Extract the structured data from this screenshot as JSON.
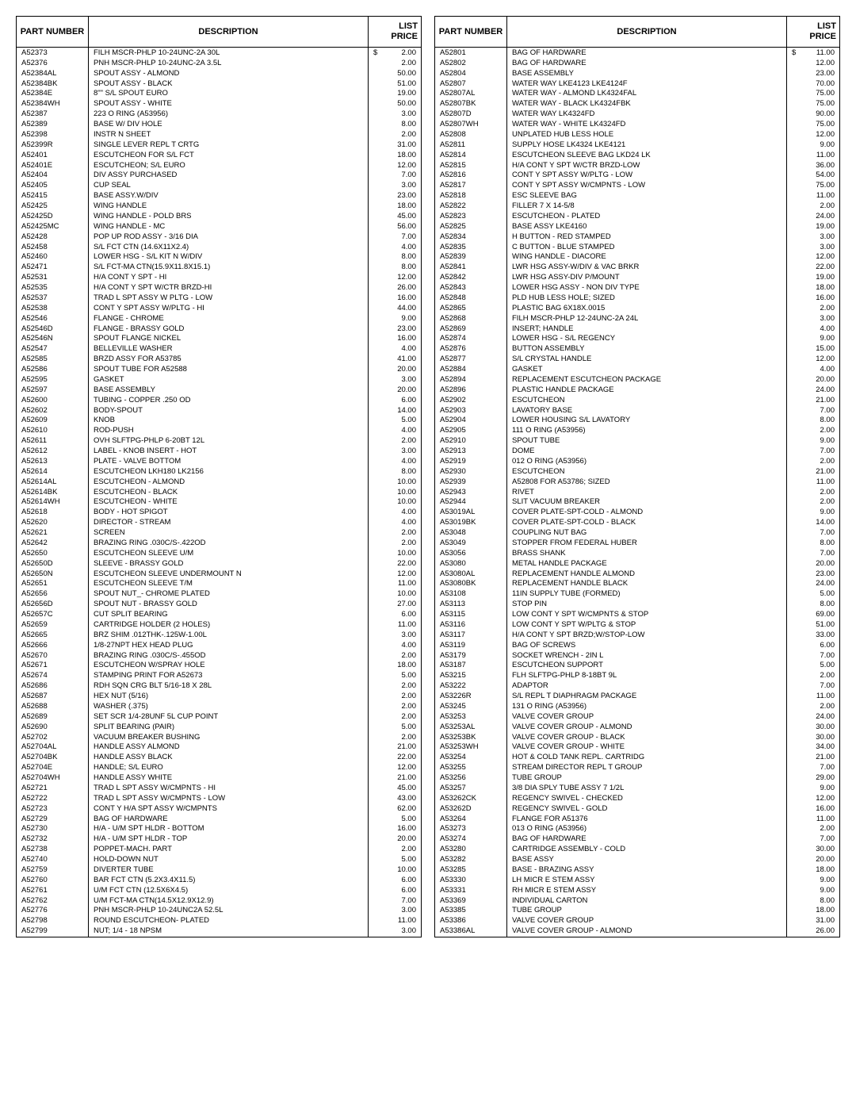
{
  "headers": {
    "part": "PART NUMBER",
    "desc": "DESCRIPTION",
    "price": "LIST PRICE"
  },
  "currency": "$",
  "left": [
    {
      "p": "A52373",
      "d": "FILH MSCR-PHLP 10-24UNC-2A 30L",
      "pr": "2.00",
      "first": true
    },
    {
      "p": "A52376",
      "d": "PNH MSCR-PHLP 10-24UNC-2A 3.5L",
      "pr": "2.00"
    },
    {
      "p": "A52384AL",
      "d": "SPOUT ASSY - ALMOND",
      "pr": "50.00"
    },
    {
      "p": "A52384BK",
      "d": "SPOUT ASSY - BLACK",
      "pr": "51.00"
    },
    {
      "p": "A52384E",
      "d": "8\"\" S/L SPOUT EURO",
      "pr": "19.00"
    },
    {
      "p": "A52384WH",
      "d": "SPOUT ASSY - WHITE",
      "pr": "50.00"
    },
    {
      "p": "A52387",
      "d": "223  O  RING (A53956)",
      "pr": "3.00"
    },
    {
      "p": "A52389",
      "d": "BASE W/ DIV HOLE",
      "pr": "8.00"
    },
    {
      "p": "A52398",
      "d": "INSTR N SHEET",
      "pr": "2.00"
    },
    {
      "p": "A52399R",
      "d": "SINGLE LEVER REPL T CRTG",
      "pr": "31.00"
    },
    {
      "p": "A52401",
      "d": "ESCUTCHEON FOR S/L FCT",
      "pr": "18.00"
    },
    {
      "p": "A52401E",
      "d": "ESCUTCHEON; S/L EURO",
      "pr": "12.00"
    },
    {
      "p": "A52404",
      "d": "DIV ASSY PURCHASED",
      "pr": "7.00"
    },
    {
      "p": "A52405",
      "d": "CUP SEAL",
      "pr": "3.00"
    },
    {
      "p": "A52415",
      "d": "BASE ASSY.W/DIV",
      "pr": "23.00"
    },
    {
      "p": "A52425",
      "d": "WING HANDLE",
      "pr": "18.00"
    },
    {
      "p": "A52425D",
      "d": "WING HANDLE - POLD BRS",
      "pr": "45.00"
    },
    {
      "p": "A52425MC",
      "d": "WING HANDLE - MC",
      "pr": "56.00"
    },
    {
      "p": "A52428",
      "d": "POP UP ROD ASSY - 3/16 DIA",
      "pr": "7.00"
    },
    {
      "p": "A52458",
      "d": "S/L FCT CTN (14.6X11X2.4)",
      "pr": "4.00"
    },
    {
      "p": "A52460",
      "d": "LOWER HSG - S/L KIT N W/DIV",
      "pr": "8.00"
    },
    {
      "p": "A52471",
      "d": "S/L FCT-MA CTN(15.9X11.8X15.1)",
      "pr": "8.00"
    },
    {
      "p": "A52531",
      "d": "H/A CONT Y SPT - HI",
      "pr": "12.00"
    },
    {
      "p": "A52535",
      "d": "H/A CONT Y SPT W/CTR BRZD-HI",
      "pr": "26.00"
    },
    {
      "p": "A52537",
      "d": "TRAD L SPT ASSY W PLTG - LOW",
      "pr": "16.00"
    },
    {
      "p": "A52538",
      "d": "CONT Y SPT ASSY W/PLTG - HI",
      "pr": "44.00"
    },
    {
      "p": "A52546",
      "d": "FLANGE - CHROME",
      "pr": "9.00"
    },
    {
      "p": "A52546D",
      "d": "FLANGE - BRASSY GOLD",
      "pr": "23.00"
    },
    {
      "p": "A52546N",
      "d": "SPOUT FLANGE NICKEL",
      "pr": "16.00"
    },
    {
      "p": "A52547",
      "d": "BELLEVILLE WASHER",
      "pr": "4.00"
    },
    {
      "p": "A52585",
      "d": "BRZD ASSY FOR A53785",
      "pr": "41.00"
    },
    {
      "p": "A52586",
      "d": "SPOUT TUBE FOR A52588",
      "pr": "20.00"
    },
    {
      "p": "A52595",
      "d": "GASKET",
      "pr": "3.00"
    },
    {
      "p": "A52597",
      "d": "BASE ASSEMBLY",
      "pr": "20.00"
    },
    {
      "p": "A52600",
      "d": "TUBING - COPPER .250 OD",
      "pr": "6.00"
    },
    {
      "p": "A52602",
      "d": "BODY-SPOUT",
      "pr": "14.00"
    },
    {
      "p": "A52609",
      "d": "KNOB",
      "pr": "5.00"
    },
    {
      "p": "A52610",
      "d": "ROD-PUSH",
      "pr": "4.00"
    },
    {
      "p": "A52611",
      "d": "OVH SLFTPG-PHLP 6-20BT 12L",
      "pr": "2.00"
    },
    {
      "p": "A52612",
      "d": "LABEL - KNOB INSERT - HOT",
      "pr": "3.00"
    },
    {
      "p": "A52613",
      "d": "PLATE - VALVE BOTTOM",
      "pr": "4.00"
    },
    {
      "p": "A52614",
      "d": "ESCUTCHEON LKH180 LK2156",
      "pr": "8.00"
    },
    {
      "p": "A52614AL",
      "d": "ESCUTCHEON - ALMOND",
      "pr": "10.00"
    },
    {
      "p": "A52614BK",
      "d": "ESCUTCHEON - BLACK",
      "pr": "10.00"
    },
    {
      "p": "A52614WH",
      "d": "ESCUTCHEON - WHITE",
      "pr": "10.00"
    },
    {
      "p": "A52618",
      "d": "BODY - HOT SPIGOT",
      "pr": "4.00"
    },
    {
      "p": "A52620",
      "d": "DIRECTOR - STREAM",
      "pr": "4.00"
    },
    {
      "p": "A52621",
      "d": "SCREEN",
      "pr": "2.00"
    },
    {
      "p": "A52642",
      "d": "BRAZING RING .030C/S-.422OD",
      "pr": "2.00"
    },
    {
      "p": "A52650",
      "d": "ESCUTCHEON SLEEVE U/M",
      "pr": "10.00"
    },
    {
      "p": "A52650D",
      "d": "SLEEVE - BRASSY GOLD",
      "pr": "22.00"
    },
    {
      "p": "A52650N",
      "d": "ESCUTCHEON SLEEVE UNDERMOUNT N",
      "pr": "12.00"
    },
    {
      "p": "A52651",
      "d": "ESCUTCHEON SLEEVE T/M",
      "pr": "11.00"
    },
    {
      "p": "A52656",
      "d": "SPOUT NUT_- CHROME PLATED",
      "pr": "10.00"
    },
    {
      "p": "A52656D",
      "d": "SPOUT NUT - BRASSY GOLD",
      "pr": "27.00"
    },
    {
      "p": "A52657C",
      "d": "CUT SPLIT BEARING",
      "pr": "6.00"
    },
    {
      "p": "A52659",
      "d": "CARTRIDGE HOLDER (2 HOLES)",
      "pr": "11.00"
    },
    {
      "p": "A52665",
      "d": "BRZ SHIM .012THK-.125W-1.00L",
      "pr": "3.00"
    },
    {
      "p": "A52666",
      "d": "1/8-27NPT HEX HEAD PLUG",
      "pr": "4.00"
    },
    {
      "p": "A52670",
      "d": "BRAZING RING .030C/S-.455OD",
      "pr": "2.00"
    },
    {
      "p": "A52671",
      "d": "ESCUTCHEON W/SPRAY HOLE",
      "pr": "18.00"
    },
    {
      "p": "A52674",
      "d": "STAMPING PRINT FOR A52673",
      "pr": "5.00"
    },
    {
      "p": "A52686",
      "d": "RDH SQN CRG BLT 5/16-18 X 28L",
      "pr": "2.00"
    },
    {
      "p": "A52687",
      "d": "HEX NUT (5/16)",
      "pr": "2.00"
    },
    {
      "p": "A52688",
      "d": "WASHER (.375)",
      "pr": "2.00"
    },
    {
      "p": "A52689",
      "d": "SET SCR 1/4-28UNF 5L CUP POINT",
      "pr": "2.00"
    },
    {
      "p": "A52690",
      "d": "SPLIT  BEARING (PAIR)",
      "pr": "5.00"
    },
    {
      "p": "A52702",
      "d": "VACUUM BREAKER BUSHING",
      "pr": "2.00"
    },
    {
      "p": "A52704AL",
      "d": "HANDLE ASSY ALMOND",
      "pr": "21.00"
    },
    {
      "p": "A52704BK",
      "d": "HANDLE ASSY BLACK",
      "pr": "22.00"
    },
    {
      "p": "A52704E",
      "d": "HANDLE; S/L EURO",
      "pr": "12.00"
    },
    {
      "p": "A52704WH",
      "d": "HANDLE ASSY WHITE",
      "pr": "21.00"
    },
    {
      "p": "A52721",
      "d": "TRAD L SPT ASSY W/CMPNTS - HI",
      "pr": "45.00"
    },
    {
      "p": "A52722",
      "d": "TRAD L SPT ASSY W/CMPNTS - LOW",
      "pr": "43.00"
    },
    {
      "p": "A52723",
      "d": "CONT Y H/A SPT ASSY W/CMPNTS",
      "pr": "62.00"
    },
    {
      "p": "A52729",
      "d": "BAG OF HARDWARE",
      "pr": "5.00"
    },
    {
      "p": "A52730",
      "d": "H/A - U/M SPT HLDR - BOTTOM",
      "pr": "16.00"
    },
    {
      "p": "A52732",
      "d": "H/A - U/M SPT HLDR - TOP",
      "pr": "20.00"
    },
    {
      "p": "A52738",
      "d": "POPPET-MACH. PART",
      "pr": "2.00"
    },
    {
      "p": "A52740",
      "d": "HOLD-DOWN NUT",
      "pr": "5.00"
    },
    {
      "p": "A52759",
      "d": "DIVERTER TUBE",
      "pr": "10.00"
    },
    {
      "p": "A52760",
      "d": "BAR FCT CTN (5.2X3.4X11.5)",
      "pr": "6.00"
    },
    {
      "p": "A52761",
      "d": "U/M FCT CTN (12.5X6X4.5)",
      "pr": "6.00"
    },
    {
      "p": "A52762",
      "d": "U/M FCT-MA CTN(14.5X12.9X12.9)",
      "pr": "7.00"
    },
    {
      "p": "A52776",
      "d": "PNH MSCR-PHLP 10-24UNC2A 52.5L",
      "pr": "3.00"
    },
    {
      "p": "A52798",
      "d": "ROUND ESCUTCHEON- PLATED",
      "pr": "11.00"
    },
    {
      "p": "A52799",
      "d": "NUT; 1/4 - 18 NPSM",
      "pr": "3.00"
    }
  ],
  "right": [
    {
      "p": "A52801",
      "d": "BAG OF HARDWARE",
      "pr": "11.00",
      "first": true
    },
    {
      "p": "A52802",
      "d": "BAG OF HARDWARE",
      "pr": "12.00"
    },
    {
      "p": "A52804",
      "d": "BASE ASSEMBLY",
      "pr": "23.00"
    },
    {
      "p": "A52807",
      "d": "WATER WAY LKE4123 LKE4124F",
      "pr": "70.00"
    },
    {
      "p": "A52807AL",
      "d": "WATER WAY - ALMOND LK4324FAL",
      "pr": "75.00"
    },
    {
      "p": "A52807BK",
      "d": "WATER WAY - BLACK LK4324FBK",
      "pr": "75.00"
    },
    {
      "p": "A52807D",
      "d": "WATER WAY LK4324FD",
      "pr": "90.00"
    },
    {
      "p": "A52807WH",
      "d": "WATER WAY - WHITE LK4324FD",
      "pr": "75.00"
    },
    {
      "p": "A52808",
      "d": "UNPLATED HUB LESS HOLE",
      "pr": "12.00"
    },
    {
      "p": "A52811",
      "d": "SUPPLY HOSE LK4324 LKE4121",
      "pr": "9.00"
    },
    {
      "p": "A52814",
      "d": "ESCUTCHEON SLEEVE BAG LKD24 LK",
      "pr": "11.00"
    },
    {
      "p": "A52815",
      "d": "H/A CONT Y SPT W/CTR BRZD-LOW",
      "pr": "36.00"
    },
    {
      "p": "A52816",
      "d": "CONT Y SPT ASSY W/PLTG - LOW",
      "pr": "54.00"
    },
    {
      "p": "A52817",
      "d": "CONT Y SPT ASSY W/CMPNTS - LOW",
      "pr": "75.00"
    },
    {
      "p": "A52818",
      "d": "ESC SLEEVE BAG",
      "pr": "11.00"
    },
    {
      "p": "A52822",
      "d": "FILLER   7 X 14-5/8",
      "pr": "2.00"
    },
    {
      "p": "A52823",
      "d": "ESCUTCHEON - PLATED",
      "pr": "24.00"
    },
    {
      "p": "A52825",
      "d": "BASE ASSY LKE4160",
      "pr": "19.00"
    },
    {
      "p": "A52834",
      "d": "H  BUTTON - RED STAMPED",
      "pr": "3.00"
    },
    {
      "p": "A52835",
      "d": "C  BUTTON - BLUE STAMPED",
      "pr": "3.00"
    },
    {
      "p": "A52839",
      "d": "WING HANDLE - DIACORE",
      "pr": "12.00"
    },
    {
      "p": "A52841",
      "d": "LWR HSG ASSY-W/DIV & VAC BRKR",
      "pr": "22.00"
    },
    {
      "p": "A52842",
      "d": "LWR HSG ASSY-DIV P/MOUNT",
      "pr": "19.00"
    },
    {
      "p": "A52843",
      "d": "LOWER HSG ASSY - NON DIV TYPE",
      "pr": "18.00"
    },
    {
      "p": "A52848",
      "d": "PLD HUB LESS HOLE; SIZED",
      "pr": "16.00"
    },
    {
      "p": "A52865",
      "d": "PLASTIC BAG 6X18X.0015",
      "pr": "2.00"
    },
    {
      "p": "A52868",
      "d": "FILH MSCR-PHLP 12-24UNC-2A 24L",
      "pr": "3.00"
    },
    {
      "p": "A52869",
      "d": "INSERT; HANDLE",
      "pr": "4.00"
    },
    {
      "p": "A52874",
      "d": "LOWER HSG - S/L REGENCY",
      "pr": "9.00"
    },
    {
      "p": "A52876",
      "d": "BUTTON ASSEMBLY",
      "pr": "15.00"
    },
    {
      "p": "A52877",
      "d": "S/L CRYSTAL HANDLE",
      "pr": "12.00"
    },
    {
      "p": "A52884",
      "d": "GASKET",
      "pr": "4.00"
    },
    {
      "p": "A52894",
      "d": "REPLACEMENT ESCUTCHEON PACKAGE",
      "pr": "20.00"
    },
    {
      "p": "A52896",
      "d": "PLASTIC HANDLE PACKAGE",
      "pr": "24.00"
    },
    {
      "p": "A52902",
      "d": "ESCUTCHEON",
      "pr": "21.00"
    },
    {
      "p": "A52903",
      "d": "LAVATORY BASE",
      "pr": "7.00"
    },
    {
      "p": "A52904",
      "d": "LOWER HOUSING S/L LAVATORY",
      "pr": "8.00"
    },
    {
      "p": "A52905",
      "d": "111  O  RING (A53956)",
      "pr": "2.00"
    },
    {
      "p": "A52910",
      "d": "SPOUT TUBE",
      "pr": "9.00"
    },
    {
      "p": "A52913",
      "d": "DOME",
      "pr": "7.00"
    },
    {
      "p": "A52919",
      "d": "012  O  RING (A53956)",
      "pr": "2.00"
    },
    {
      "p": "A52930",
      "d": "ESCUTCHEON",
      "pr": "21.00"
    },
    {
      "p": "A52939",
      "d": "A52808 FOR A53786; SIZED",
      "pr": "11.00"
    },
    {
      "p": "A52943",
      "d": "RIVET",
      "pr": "2.00"
    },
    {
      "p": "A52944",
      "d": "SLIT VACUUM BREAKER",
      "pr": "2.00"
    },
    {
      "p": "A53019AL",
      "d": "COVER PLATE-SPT-COLD - ALMOND",
      "pr": "9.00"
    },
    {
      "p": "A53019BK",
      "d": "COVER PLATE-SPT-COLD - BLACK",
      "pr": "14.00"
    },
    {
      "p": "A53048",
      "d": "COUPLING NUT BAG",
      "pr": "7.00"
    },
    {
      "p": "A53049",
      "d": "STOPPER FROM FEDERAL HUBER",
      "pr": "8.00"
    },
    {
      "p": "A53056",
      "d": "BRASS SHANK",
      "pr": "7.00"
    },
    {
      "p": "A53080",
      "d": "METAL HANDLE PACKAGE",
      "pr": "20.00"
    },
    {
      "p": "A53080AL",
      "d": "REPLACEMENT HANDLE ALMOND",
      "pr": "23.00"
    },
    {
      "p": "A53080BK",
      "d": "REPLACEMENT HANDLE BLACK",
      "pr": "24.00"
    },
    {
      "p": "A53108",
      "d": "11IN SUPPLY TUBE (FORMED)",
      "pr": "5.00"
    },
    {
      "p": "A53113",
      "d": "STOP PIN",
      "pr": "8.00"
    },
    {
      "p": "A53115",
      "d": "LOW CONT Y SPT W/CMPNTS & STOP",
      "pr": "69.00"
    },
    {
      "p": "A53116",
      "d": "LOW CONT Y SPT W/PLTG & STOP",
      "pr": "51.00"
    },
    {
      "p": "A53117",
      "d": "H/A CONT Y SPT BRZD;W/STOP-LOW",
      "pr": "33.00"
    },
    {
      "p": "A53119",
      "d": "BAG OF SCREWS",
      "pr": "6.00"
    },
    {
      "p": "A53179",
      "d": "SOCKET WRENCH - 2IN L",
      "pr": "7.00"
    },
    {
      "p": "A53187",
      "d": "ESCUTCHEON SUPPORT",
      "pr": "5.00"
    },
    {
      "p": "A53215",
      "d": "FLH SLFTPG-PHLP 8-18BT 9L",
      "pr": "2.00"
    },
    {
      "p": "A53222",
      "d": "ADAPTOR",
      "pr": "7.00"
    },
    {
      "p": "A53226R",
      "d": "S/L REPL T DIAPHRAGM PACKAGE",
      "pr": "11.00"
    },
    {
      "p": "A53245",
      "d": "131  O  RING (A53956)",
      "pr": "2.00"
    },
    {
      "p": "A53253",
      "d": "VALVE COVER GROUP",
      "pr": "24.00"
    },
    {
      "p": "A53253AL",
      "d": "VALVE COVER GROUP - ALMOND",
      "pr": "30.00"
    },
    {
      "p": "A53253BK",
      "d": "VALVE COVER GROUP - BLACK",
      "pr": "30.00"
    },
    {
      "p": "A53253WH",
      "d": "VALVE COVER GROUP - WHITE",
      "pr": "34.00"
    },
    {
      "p": "A53254",
      "d": "HOT & COLD TANK REPL. CARTRIDG",
      "pr": "21.00"
    },
    {
      "p": "A53255",
      "d": "STREAM DIRECTOR REPL T GROUP",
      "pr": "7.00"
    },
    {
      "p": "A53256",
      "d": "TUBE GROUP",
      "pr": "29.00"
    },
    {
      "p": "A53257",
      "d": "3/8 DIA SPLY TUBE ASSY 7 1/2L",
      "pr": "9.00"
    },
    {
      "p": "A53262CK",
      "d": "REGENCY SWIVEL - CHECKED",
      "pr": "12.00"
    },
    {
      "p": "A53262D",
      "d": "REGENCY SWIVEL - GOLD",
      "pr": "16.00"
    },
    {
      "p": "A53264",
      "d": "FLANGE FOR A51376",
      "pr": "11.00"
    },
    {
      "p": "A53273",
      "d": "013  O  RING (A53956)",
      "pr": "2.00"
    },
    {
      "p": "A53274",
      "d": "BAG OF HARDWARE",
      "pr": "7.00"
    },
    {
      "p": "A53280",
      "d": "CARTRIDGE ASSEMBLY - COLD",
      "pr": "30.00"
    },
    {
      "p": "A53282",
      "d": "BASE ASSY",
      "pr": "20.00"
    },
    {
      "p": "A53285",
      "d": "BASE - BRAZING ASSY",
      "pr": "18.00"
    },
    {
      "p": "A53330",
      "d": "LH MICR E STEM ASSY",
      "pr": "9.00"
    },
    {
      "p": "A53331",
      "d": "RH MICR E STEM ASSY",
      "pr": "9.00"
    },
    {
      "p": "A53369",
      "d": "INDIVIDUAL CARTON",
      "pr": "8.00"
    },
    {
      "p": "A53385",
      "d": "TUBE GROUP",
      "pr": "18.00"
    },
    {
      "p": "A53386",
      "d": "VALVE COVER GROUP",
      "pr": "31.00"
    },
    {
      "p": "A53386AL",
      "d": "VALVE COVER GROUP - ALMOND",
      "pr": "26.00"
    }
  ]
}
